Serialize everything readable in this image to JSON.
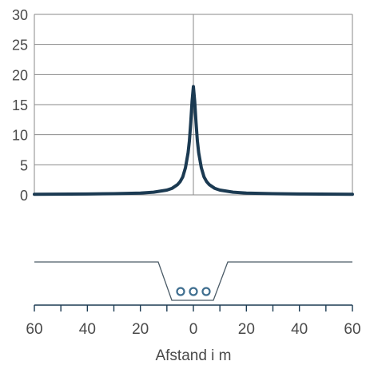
{
  "chart_data": {
    "type": "line",
    "title": "",
    "xlabel": "Afstand i m",
    "ylabel": "",
    "ylim": [
      0,
      30
    ],
    "xlim": [
      -60,
      60
    ],
    "y_ticks": [
      0,
      5,
      10,
      15,
      20,
      25,
      30
    ],
    "x_ticks": [
      -60,
      -40,
      -20,
      0,
      20,
      40,
      60
    ],
    "x_tick_labels": [
      "60",
      "40",
      "20",
      "0",
      "20",
      "40",
      "60"
    ],
    "grid": true,
    "series": [
      {
        "x": [
          -60,
          -40,
          -30,
          -20,
          -15,
          -10,
          -8,
          -6,
          -5,
          -4,
          -3,
          -2,
          -1.5,
          -1,
          -0.5,
          0,
          0.5,
          1,
          1.5,
          2,
          3,
          4,
          5,
          6,
          8,
          10,
          15,
          20,
          30,
          40,
          60
        ],
        "values": [
          0.1,
          0.15,
          0.2,
          0.3,
          0.45,
          0.8,
          1.1,
          1.7,
          2.2,
          3.0,
          4.5,
          7.0,
          9.0,
          12.0,
          15.5,
          18.0,
          15.5,
          12.0,
          9.0,
          7.0,
          4.5,
          3.0,
          2.2,
          1.7,
          1.1,
          0.8,
          0.45,
          0.3,
          0.2,
          0.15,
          0.1
        ]
      }
    ],
    "cross_section": {
      "conductor_count": 3
    },
    "colors": {
      "curve": "#1b3a52",
      "grid": "#8a8a8a",
      "axis": "#1b3a52",
      "trench": "#4a5a66",
      "conductor": "#3f6e8f"
    }
  }
}
